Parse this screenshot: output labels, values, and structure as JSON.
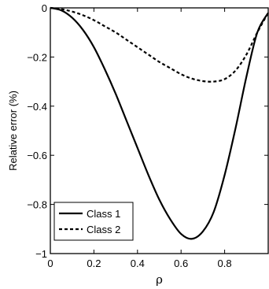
{
  "chart_data": {
    "type": "line",
    "title": "",
    "xlabel": "ρ",
    "ylabel": "Relative error (%)",
    "xlim": [
      0,
      1
    ],
    "ylim": [
      -1,
      0
    ],
    "xticks": [
      0,
      0.2,
      0.4,
      0.6,
      0.8
    ],
    "xtick_labels": [
      "0",
      "0.2",
      "0.4",
      "0.6",
      "0.8"
    ],
    "yticks": [
      0,
      -0.2,
      -0.4,
      -0.6,
      -0.8,
      -1
    ],
    "ytick_labels": [
      "0",
      "−0.2",
      "−0.4",
      "−0.6",
      "−0.8",
      "−1"
    ],
    "grid": false,
    "legend_position": "bottom-left",
    "series": [
      {
        "name": "Class 1",
        "style": "solid",
        "color": "#000000",
        "x": [
          0,
          0.05,
          0.1,
          0.15,
          0.2,
          0.25,
          0.3,
          0.35,
          0.4,
          0.45,
          0.5,
          0.55,
          0.6,
          0.65,
          0.7,
          0.75,
          0.8,
          0.85,
          0.9,
          0.95,
          1.0
        ],
        "y": [
          0,
          -0.01,
          -0.04,
          -0.09,
          -0.16,
          -0.25,
          -0.35,
          -0.46,
          -0.57,
          -0.68,
          -0.78,
          -0.86,
          -0.92,
          -0.94,
          -0.91,
          -0.83,
          -0.68,
          -0.49,
          -0.28,
          -0.1,
          -0.02
        ]
      },
      {
        "name": "Class 2",
        "style": "dashed",
        "color": "#000000",
        "x": [
          0,
          0.05,
          0.1,
          0.15,
          0.2,
          0.25,
          0.3,
          0.35,
          0.4,
          0.45,
          0.5,
          0.55,
          0.6,
          0.65,
          0.7,
          0.75,
          0.8,
          0.85,
          0.9,
          0.95,
          1.0
        ],
        "y": [
          0,
          -0.005,
          -0.015,
          -0.03,
          -0.05,
          -0.075,
          -0.1,
          -0.13,
          -0.16,
          -0.19,
          -0.22,
          -0.245,
          -0.27,
          -0.288,
          -0.298,
          -0.3,
          -0.29,
          -0.255,
          -0.19,
          -0.1,
          -0.02
        ]
      }
    ]
  }
}
